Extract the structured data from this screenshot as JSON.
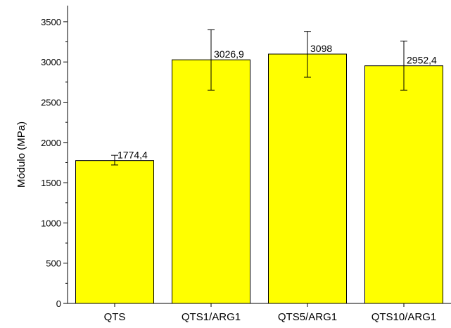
{
  "chart_data": {
    "type": "bar",
    "categories": [
      "QTS",
      "QTS1/ARG1",
      "QTS5/ARG1",
      "QTS10/ARG1"
    ],
    "values": [
      1774.4,
      3026.9,
      3098,
      2952.4
    ],
    "value_labels": [
      "1774,4",
      "3026,9",
      "3098",
      "2952,4"
    ],
    "error_low": [
      1720,
      2650,
      2810,
      2650
    ],
    "error_high": [
      1840,
      3400,
      3380,
      3260
    ],
    "ylabel": "Módulo (MPa)",
    "xlabel": "",
    "title": "",
    "ylim": [
      0,
      3700
    ],
    "yticks": [
      0,
      500,
      1000,
      1500,
      2000,
      2500,
      3000,
      3500
    ],
    "ytick_labels": [
      "0",
      "500",
      "1000",
      "1500",
      "2000",
      "2500",
      "3000",
      "3500"
    ],
    "grid": false,
    "bar_color": "#ffff00",
    "edge_color": "#000000"
  }
}
